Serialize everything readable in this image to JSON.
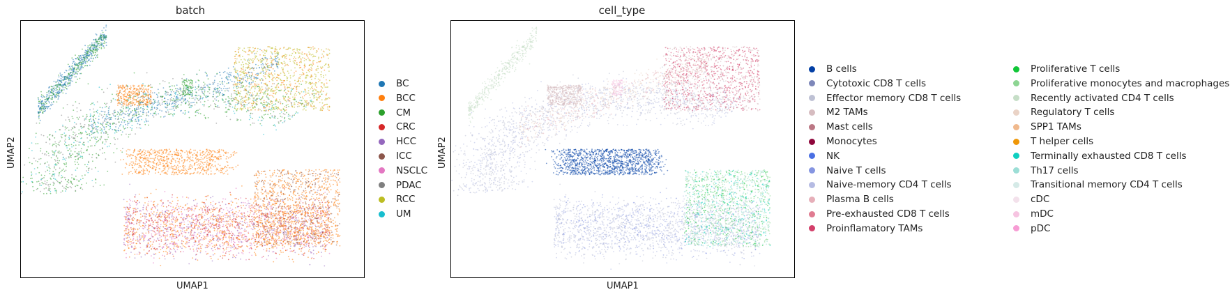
{
  "chart_data": [
    {
      "type": "scatter",
      "title": "batch",
      "xlabel": "UMAP1",
      "ylabel": "UMAP2",
      "grid": false,
      "legend_position": "right",
      "series": [
        {
          "name": "BC",
          "color": "#1f77b4"
        },
        {
          "name": "BCC",
          "color": "#ff7f0e"
        },
        {
          "name": "CM",
          "color": "#2ca02c"
        },
        {
          "name": "CRC",
          "color": "#d62728"
        },
        {
          "name": "HCC",
          "color": "#9467bd"
        },
        {
          "name": "ICC",
          "color": "#8c564b"
        },
        {
          "name": "NSCLC",
          "color": "#e377c2"
        },
        {
          "name": "PDAC",
          "color": "#7f7f7f"
        },
        {
          "name": "RCC",
          "color": "#bcbd22"
        },
        {
          "name": "UM",
          "color": "#17becf"
        }
      ]
    },
    {
      "type": "scatter",
      "title": "cell_type",
      "xlabel": "UMAP1",
      "ylabel": "UMAP2",
      "grid": false,
      "legend_position": "right, 2 columns",
      "series": [
        {
          "name": "B cells",
          "color": "#023fa5"
        },
        {
          "name": "Cytotoxic CD8 T cells",
          "color": "#7d87b9"
        },
        {
          "name": "Effector memory CD8 T cells",
          "color": "#bec1d4"
        },
        {
          "name": "M2 TAMs",
          "color": "#d6bcc0"
        },
        {
          "name": "Mast cells",
          "color": "#bb7784"
        },
        {
          "name": "Monocytes",
          "color": "#8e063b"
        },
        {
          "name": "NK",
          "color": "#4a6fe3"
        },
        {
          "name": "Naive T cells",
          "color": "#8595e1"
        },
        {
          "name": "Naive-memory CD4 T cells",
          "color": "#b5bbe3"
        },
        {
          "name": "Plasma B cells",
          "color": "#e6afb9"
        },
        {
          "name": "Pre-exhausted CD8 T cells",
          "color": "#e07b91"
        },
        {
          "name": "Proinflamatory TAMs",
          "color": "#d33f6a"
        },
        {
          "name": "Proliferative T cells",
          "color": "#11c638"
        },
        {
          "name": "Proliferative monocytes and macrophages",
          "color": "#8dd593"
        },
        {
          "name": "Recently activated CD4 T cells",
          "color": "#c6dec7"
        },
        {
          "name": "Regulatory T cells",
          "color": "#ead3c6"
        },
        {
          "name": "SPP1 TAMs",
          "color": "#f0b98d"
        },
        {
          "name": "T helper cells",
          "color": "#ef9708"
        },
        {
          "name": "Terminally exhausted CD8 T cells",
          "color": "#0fcfc0"
        },
        {
          "name": "Th17 cells",
          "color": "#9cded6"
        },
        {
          "name": "Transitional memory CD4 T cells",
          "color": "#d5eae7"
        },
        {
          "name": "cDC",
          "color": "#f3e1eb"
        },
        {
          "name": "mDC",
          "color": "#f6c4e1"
        },
        {
          "name": "pDC",
          "color": "#f79cd4"
        }
      ]
    }
  ]
}
